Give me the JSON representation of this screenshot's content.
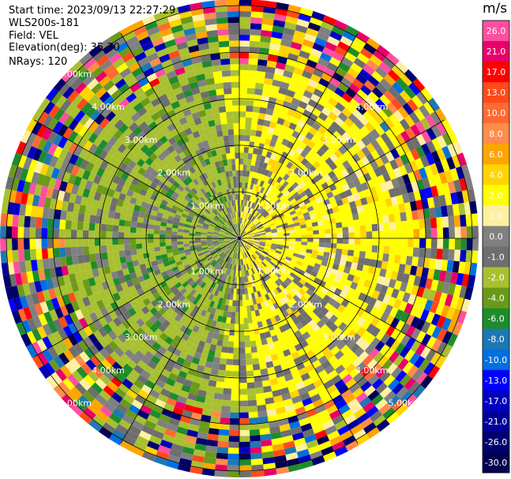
{
  "info": {
    "start_time": "Start time: 2023/09/13 22:27:29",
    "name": "WLS200s-181",
    "field": "Field: VEL",
    "elevation": "Elevation(deg): 35.30",
    "nrays": "NRays: 120"
  },
  "colorbar": {
    "unit": "m/s",
    "levels": [
      {
        "label": "26.0",
        "color": "#ff4fa0"
      },
      {
        "label": "21.0",
        "color": "#e8006a"
      },
      {
        "label": "17.0",
        "color": "#ff0000"
      },
      {
        "label": "13.0",
        "color": "#ff4a1a"
      },
      {
        "label": "10.0",
        "color": "#ff6a33"
      },
      {
        "label": "8.0",
        "color": "#ff8c4a"
      },
      {
        "label": "6.0",
        "color": "#ffa500"
      },
      {
        "label": "4.0",
        "color": "#ffd400"
      },
      {
        "label": "2.0",
        "color": "#ffff00"
      },
      {
        "label": "1.0",
        "color": "#fff0a0"
      },
      {
        "label": "0.0",
        "color": "#808080"
      },
      {
        "label": "-1.0",
        "color": "#6e6e6e"
      },
      {
        "label": "-2.0",
        "color": "#a8c030"
      },
      {
        "label": "-4.0",
        "color": "#6a9a1a"
      },
      {
        "label": "-6.0",
        "color": "#1e8c2c"
      },
      {
        "label": "-8.0",
        "color": "#1e78b4"
      },
      {
        "label": "-10.0",
        "color": "#0070e0"
      },
      {
        "label": "-13.0",
        "color": "#0000ff"
      },
      {
        "label": "-17.0",
        "color": "#0000c0"
      },
      {
        "label": "-21.0",
        "color": "#000099"
      },
      {
        "label": "-26.0",
        "color": "#000070"
      },
      {
        "label": "-30.0",
        "color": "#000050"
      }
    ]
  },
  "chart_data": {
    "type": "heatmap",
    "subtype": "polar-ppi",
    "field": "VEL",
    "nrays": 120,
    "range_rings": [
      "1.00km",
      "2.00km",
      "3.00km",
      "4.00km",
      "5.00km"
    ],
    "ring_labels_upper_left": [
      "5.00km",
      "4.00km",
      "3.00km",
      "2.00km",
      "1.00km"
    ],
    "ring_labels_upper_right": [
      "1.00km",
      "2.00km",
      "3.00km",
      "4.00km"
    ],
    "ring_labels_lower_left": [
      "1.00km",
      "2.00km",
      "3.00km",
      "4.00km",
      "5.00km"
    ],
    "ring_labels_lower_right": [
      "1.00km",
      "2.00km",
      "3.00km",
      "4.00km",
      "5.00km"
    ],
    "max_range_km": 5.0,
    "pattern": "positive velocities (yellow/orange) dominate the east half, negative velocities (green) dominate the west half; outer gates show noisy mixed values"
  }
}
